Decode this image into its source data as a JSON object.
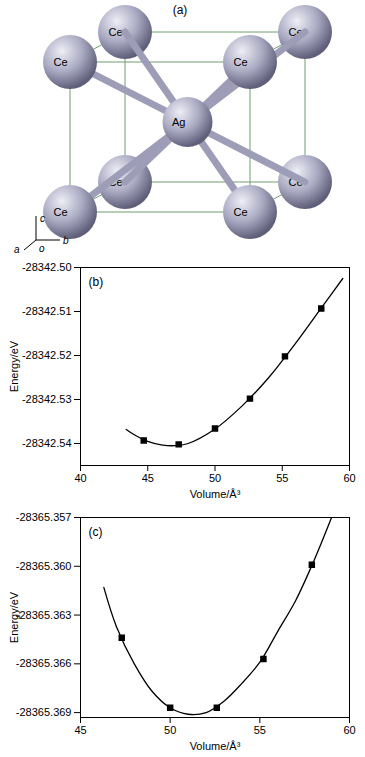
{
  "diagram": {
    "label": "(a)",
    "corner_atoms": [
      "Ce",
      "Ce",
      "Ce",
      "Ce",
      "Ce",
      "Ce",
      "Ce",
      "Ce"
    ],
    "center_atom": "Ag",
    "axes": {
      "origin": "o",
      "a": "a",
      "b": "b",
      "c": "c"
    }
  },
  "chart_data": [
    {
      "type": "line",
      "label": "(b)",
      "x_label": "Volume/Å³",
      "y_label": "Energy/eV",
      "xlim": [
        40,
        60
      ],
      "xticks": [
        40,
        45,
        50,
        55,
        60
      ],
      "ylim": [
        -28342.545,
        -28342.5
      ],
      "yticks": [
        -28342.54,
        -28342.53,
        -28342.52,
        -28342.51,
        {
          "value": -28342.5,
          "label": "-28342.50"
        }
      ],
      "series": [
        {
          "type": "line",
          "color": "#000000",
          "line_style": "solid",
          "x": [
            43.4,
            44,
            45,
            46,
            47,
            48,
            50,
            52,
            54,
            56,
            58,
            59.5
          ],
          "values": [
            -28342.5368,
            -28342.538,
            -28342.5395,
            -28342.5403,
            -28342.5405,
            -28342.54,
            -28342.5367,
            -28342.5315,
            -28342.525,
            -28342.5172,
            -28342.5088,
            -28342.5025
          ]
        },
        {
          "type": "scatter",
          "color": "#000000",
          "marker": "square",
          "x": [
            44.7,
            47.3,
            50.0,
            52.6,
            55.2,
            57.9
          ],
          "values": [
            -28342.5393,
            -28342.5402,
            -28342.5366,
            -28342.5298,
            -28342.5202,
            -28342.5093
          ]
        }
      ]
    },
    {
      "type": "line",
      "label": "(c)",
      "x_label": "Volume/Å³",
      "y_label": "Energy/eV",
      "xlim": [
        45,
        60
      ],
      "xticks": [
        45,
        50,
        55,
        60
      ],
      "ylim": [
        -28365.3693,
        -28365.357
      ],
      "yticks": [
        -28365.369,
        -28365.366,
        -28365.363,
        {
          "value": -28365.36,
          "label": "-28365.360"
        },
        -28365.357
      ],
      "series": [
        {
          "type": "line",
          "color": "#000000",
          "line_style": "solid",
          "x": [
            46.3,
            47,
            48,
            49,
            50,
            51,
            52,
            53,
            54,
            55,
            56,
            57,
            58,
            59
          ],
          "values": [
            -28365.3613,
            -28365.3637,
            -28365.366,
            -28365.3677,
            -28365.3687,
            -28365.3691,
            -28365.369,
            -28365.3683,
            -28365.3672,
            -28365.3659,
            -28365.364,
            -28365.3621,
            -28365.3597,
            -28365.357
          ]
        },
        {
          "type": "scatter",
          "color": "#000000",
          "marker": "square",
          "x": [
            47.3,
            50.0,
            52.6,
            55.2,
            57.9
          ],
          "values": [
            -28365.3644,
            -28365.3687,
            -28365.3687,
            -28365.3657,
            -28365.3599
          ]
        }
      ]
    }
  ]
}
